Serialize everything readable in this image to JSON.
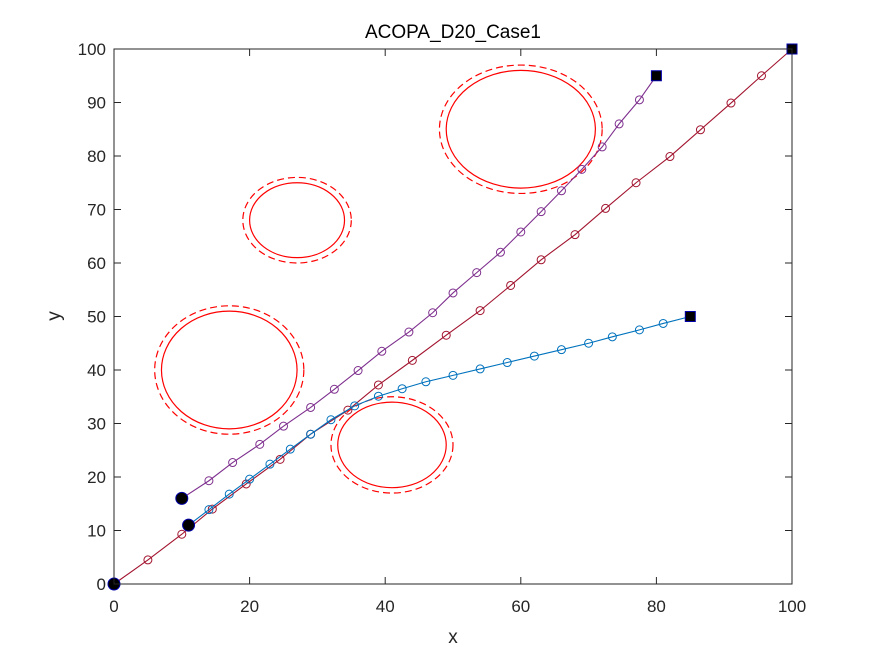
{
  "chart_data": {
    "type": "line",
    "title": "ACOPA_D20_Case1",
    "xlabel": "x",
    "ylabel": "y",
    "xlim": [
      0,
      100
    ],
    "ylim": [
      0,
      100
    ],
    "xticks": [
      "0",
      "20",
      "40",
      "60",
      "80",
      "100"
    ],
    "yticks": [
      "0",
      "10",
      "20",
      "30",
      "40",
      "50",
      "60",
      "70",
      "80",
      "90",
      "100"
    ],
    "grid": false,
    "legend": "none",
    "obstacles": [
      {
        "cx": 17,
        "cy": 40,
        "rx": 10,
        "ry": 11,
        "safety_rx": 11,
        "safety_ry": 12
      },
      {
        "cx": 27,
        "cy": 68,
        "rx": 7,
        "ry": 7,
        "safety_rx": 8,
        "safety_ry": 8
      },
      {
        "cx": 41,
        "cy": 26,
        "rx": 8,
        "ry": 8,
        "safety_rx": 9,
        "safety_ry": 9
      },
      {
        "cx": 60,
        "cy": 85,
        "rx": 11,
        "ry": 11,
        "safety_rx": 12,
        "safety_ry": 12
      }
    ],
    "series": [
      {
        "color": "#A2142F",
        "start": [
          0,
          0
        ],
        "goal": [
          100,
          100
        ],
        "points": [
          [
            0,
            0
          ],
          [
            5,
            4.5
          ],
          [
            10,
            9.3
          ],
          [
            14.5,
            14
          ],
          [
            19.5,
            18.7
          ],
          [
            24.5,
            23.3
          ],
          [
            29,
            28
          ],
          [
            34.5,
            32.5
          ],
          [
            39,
            37.2
          ],
          [
            44,
            41.8
          ],
          [
            49,
            46.5
          ],
          [
            54,
            51.1
          ],
          [
            58.5,
            55.8
          ],
          [
            63,
            60.6
          ],
          [
            68,
            65.3
          ],
          [
            72.5,
            70.2
          ],
          [
            77,
            75
          ],
          [
            82,
            79.9
          ],
          [
            86.5,
            84.9
          ],
          [
            91,
            89.9
          ],
          [
            95.5,
            95
          ],
          [
            100,
            100
          ]
        ]
      },
      {
        "color": "#7E2F8E",
        "start": [
          10,
          16
        ],
        "goal": [
          80,
          95
        ],
        "points": [
          [
            10,
            16
          ],
          [
            14,
            19.3
          ],
          [
            17.5,
            22.7
          ],
          [
            21.5,
            26.1
          ],
          [
            25,
            29.5
          ],
          [
            29,
            33
          ],
          [
            32.5,
            36.4
          ],
          [
            36,
            39.9
          ],
          [
            39.5,
            43.5
          ],
          [
            43.5,
            47.1
          ],
          [
            47,
            50.7
          ],
          [
            50,
            54.4
          ],
          [
            53.5,
            58.2
          ],
          [
            57,
            62
          ],
          [
            60,
            65.8
          ],
          [
            63,
            69.6
          ],
          [
            66,
            73.5
          ],
          [
            69,
            77.5
          ],
          [
            72,
            81.7
          ],
          [
            74.5,
            86
          ],
          [
            77.5,
            90.5
          ],
          [
            80,
            95
          ]
        ]
      },
      {
        "color": "#0072BD",
        "start": [
          11,
          11
        ],
        "goal": [
          85,
          50
        ],
        "points": [
          [
            11,
            11
          ],
          [
            14,
            13.9
          ],
          [
            17,
            16.8
          ],
          [
            20,
            19.6
          ],
          [
            23,
            22.4
          ],
          [
            26,
            25.2
          ],
          [
            29,
            28
          ],
          [
            32,
            30.7
          ],
          [
            35.5,
            33.3
          ],
          [
            39,
            35.1
          ],
          [
            42.5,
            36.5
          ],
          [
            46,
            37.8
          ],
          [
            50,
            39
          ],
          [
            54,
            40.2
          ],
          [
            58,
            41.4
          ],
          [
            62,
            42.6
          ],
          [
            66,
            43.8
          ],
          [
            70,
            45
          ],
          [
            73.5,
            46.2
          ],
          [
            77.5,
            47.5
          ],
          [
            81,
            48.7
          ],
          [
            85,
            50
          ]
        ]
      }
    ]
  }
}
